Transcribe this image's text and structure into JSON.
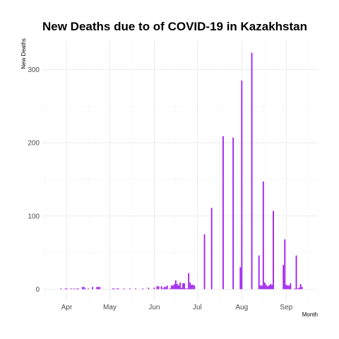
{
  "chart_data": {
    "type": "bar",
    "title": "New Deaths due to of COVID-19 in Kazakhstan",
    "xlabel": "Month",
    "ylabel": "New Deaths",
    "x_ticks": [
      {
        "label": "Apr",
        "date": "2020-04-01"
      },
      {
        "label": "May",
        "date": "2020-05-01"
      },
      {
        "label": "Jun",
        "date": "2020-06-01"
      },
      {
        "label": "Jul",
        "date": "2020-07-01"
      },
      {
        "label": "Aug",
        "date": "2020-08-01"
      },
      {
        "label": "Sep",
        "date": "2020-09-01"
      }
    ],
    "y_ticks": [
      0,
      100,
      200,
      300
    ],
    "xlim": [
      "2020-03-15",
      "2020-09-23"
    ],
    "ylim": [
      -15,
      340
    ],
    "grid": true,
    "bar_color": "#a020f0",
    "series": [
      {
        "dates": [
          "2020-03-28",
          "2020-03-31",
          "2020-04-01",
          "2020-04-04",
          "2020-04-06",
          "2020-04-08",
          "2020-04-09",
          "2020-04-12",
          "2020-04-13",
          "2020-04-14",
          "2020-04-16",
          "2020-04-19",
          "2020-04-22",
          "2020-04-23",
          "2020-04-24",
          "2020-05-03",
          "2020-05-04",
          "2020-05-06",
          "2020-05-07",
          "2020-05-11",
          "2020-05-15",
          "2020-05-19",
          "2020-05-24",
          "2020-05-28",
          "2020-06-01",
          "2020-06-03",
          "2020-06-04",
          "2020-06-06",
          "2020-06-07",
          "2020-06-08",
          "2020-06-09",
          "2020-06-10",
          "2020-06-12",
          "2020-06-13",
          "2020-06-14",
          "2020-06-15",
          "2020-06-16",
          "2020-06-17",
          "2020-06-18",
          "2020-06-19",
          "2020-06-20",
          "2020-06-21",
          "2020-06-22",
          "2020-06-23",
          "2020-06-24",
          "2020-06-25",
          "2020-06-26",
          "2020-06-27",
          "2020-06-28",
          "2020-06-29",
          "2020-07-06",
          "2020-07-11",
          "2020-07-19",
          "2020-07-26",
          "2020-07-31",
          "2020-08-01",
          "2020-08-08",
          "2020-08-13",
          "2020-08-14",
          "2020-08-15",
          "2020-08-16",
          "2020-08-17",
          "2020-08-18",
          "2020-08-19",
          "2020-08-20",
          "2020-08-21",
          "2020-08-22",
          "2020-08-23",
          "2020-08-30",
          "2020-08-31",
          "2020-09-01",
          "2020-09-02",
          "2020-09-03",
          "2020-09-04",
          "2020-09-07",
          "2020-09-08",
          "2020-09-09",
          "2020-09-10",
          "2020-09-11",
          "2020-09-12"
        ],
        "values": [
          1,
          1,
          1,
          1,
          1,
          1,
          1,
          3,
          3,
          1,
          1,
          3,
          3,
          3,
          3,
          1,
          1,
          1,
          1,
          1,
          1,
          1,
          1,
          2,
          2,
          4,
          4,
          4,
          1,
          3,
          3,
          5,
          1,
          5,
          5,
          7,
          12,
          7,
          5,
          9,
          2,
          8,
          8,
          1,
          1,
          22,
          9,
          6,
          6,
          5,
          75,
          111,
          209,
          207,
          30,
          285,
          323,
          46,
          5,
          5,
          147,
          9,
          6,
          4,
          5,
          7,
          6,
          107,
          33,
          68,
          6,
          5,
          5,
          8,
          1,
          46,
          1,
          2,
          7,
          3
        ]
      }
    ]
  }
}
